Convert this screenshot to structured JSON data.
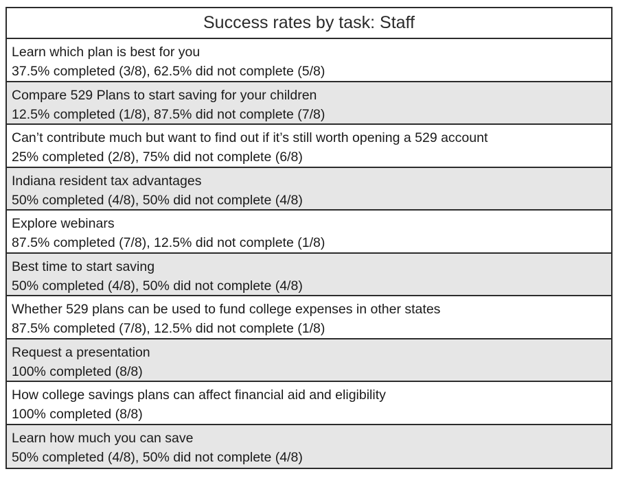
{
  "table": {
    "title": "Success rates by task: Staff",
    "rows": [
      {
        "task": "Learn which plan is best for you",
        "result": "37.5% completed (3/8), 62.5% did not complete (5/8)",
        "shaded": false
      },
      {
        "task": "Compare 529 Plans to start saving for your children",
        "result": "12.5% completed (1/8), 87.5% did not complete (7/8)",
        "shaded": true
      },
      {
        "task": "Can’t contribute much but want to find out if it’s still worth opening a 529 account",
        "result": "25% completed (2/8), 75% did not complete (6/8)",
        "shaded": false
      },
      {
        "task": "Indiana resident tax advantages",
        "result": "50% completed (4/8), 50% did not complete (4/8)",
        "shaded": true
      },
      {
        "task": "Explore webinars",
        "result": "87.5% completed (7/8), 12.5% did not complete (1/8)",
        "shaded": false
      },
      {
        "task": "Best time to start saving",
        "result": "50% completed (4/8), 50% did not complete (4/8)",
        "shaded": true
      },
      {
        "task": "Whether 529 plans can be used to fund college expenses in other states",
        "result": "87.5% completed (7/8), 12.5% did not complete (1/8)",
        "shaded": false
      },
      {
        "task": "Request a presentation",
        "result": "100% completed (8/8)",
        "shaded": true
      },
      {
        "task": "How college savings plans can affect financial aid and eligibility",
        "result": "100% completed (8/8)",
        "shaded": false
      },
      {
        "task": "Learn how much you can save",
        "result": "50% completed (4/8), 50% did not complete (4/8)",
        "shaded": true
      }
    ]
  }
}
